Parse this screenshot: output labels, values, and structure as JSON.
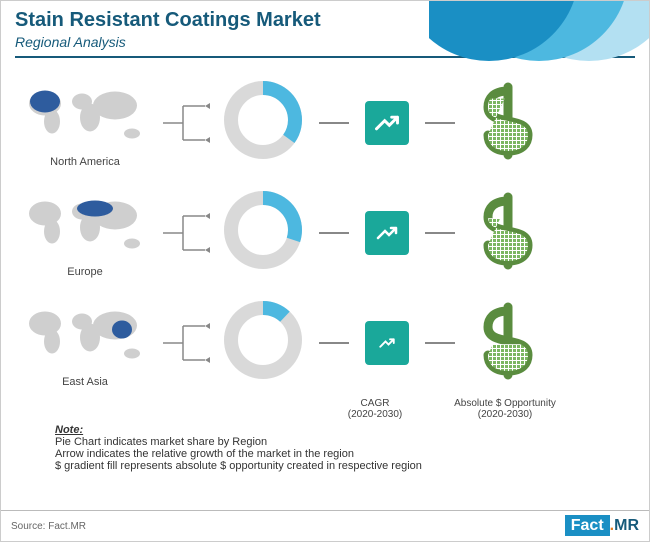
{
  "header": {
    "title": "Stain Resistant Coatings Market",
    "subtitle": "Regional Analysis",
    "title_color": "#165a7a",
    "arc_colors": [
      "#1a8fc4",
      "#4db8e0",
      "#b3e0f2"
    ]
  },
  "regions": [
    {
      "name": "North America",
      "donut_share_pct": 35,
      "donut_fill_color": "#4db8e0",
      "donut_bg_color": "#d9d9d9",
      "cagr_box_color": "#1aa89a",
      "cagr_arrow_size": 28,
      "dollar_fill_pct": 85,
      "dollar_fill_color": "#7bb661",
      "dollar_outline_color": "#5a8c3f"
    },
    {
      "name": "Europe",
      "donut_share_pct": 30,
      "donut_fill_color": "#4db8e0",
      "donut_bg_color": "#d9d9d9",
      "cagr_box_color": "#1aa89a",
      "cagr_arrow_size": 24,
      "dollar_fill_pct": 70,
      "dollar_fill_color": "#7bb661",
      "dollar_outline_color": "#5a8c3f"
    },
    {
      "name": "East Asia",
      "donut_share_pct": 12,
      "donut_fill_color": "#4db8e0",
      "donut_bg_color": "#d9d9d9",
      "cagr_box_color": "#1aa89a",
      "cagr_arrow_size": 18,
      "dollar_fill_pct": 45,
      "dollar_fill_color": "#7bb661",
      "dollar_outline_color": "#5a8c3f"
    }
  ],
  "column_labels": {
    "cagr": "CAGR",
    "cagr_period": "(2020-2030)",
    "opportunity": "Absolute $ Opportunity",
    "opportunity_period": "(2020-2030)"
  },
  "note": {
    "heading": "Note:",
    "lines": [
      "Pie Chart indicates market share by Region",
      "Arrow indicates the relative growth of the market in the region",
      "$ gradient fill represents absolute $ opportunity created in respective region"
    ]
  },
  "footer": {
    "source": "Source: Fact.MR",
    "logo_fact": "Fact",
    "logo_dot": ".",
    "logo_mr": "MR"
  },
  "map": {
    "land_color": "#cfcfcf",
    "highlight_color": "#2e5c9e"
  },
  "connector_color": "#888888"
}
